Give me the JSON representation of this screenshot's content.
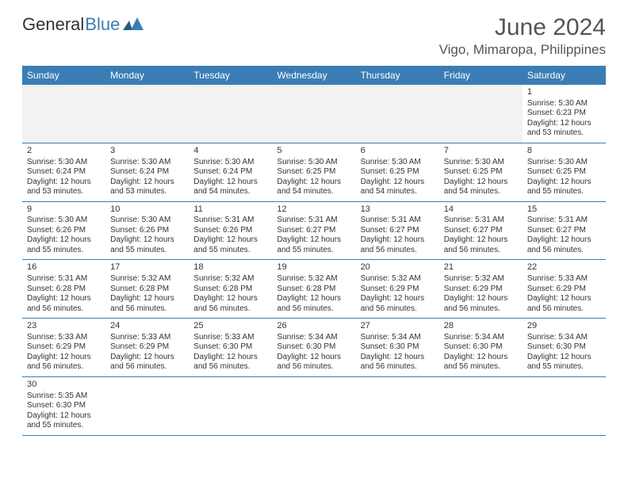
{
  "logo": {
    "text1": "General",
    "text2": "Blue"
  },
  "title": "June 2024",
  "location": "Vigo, Mimaropa, Philippines",
  "colors": {
    "header_bg": "#3a7db5",
    "header_text": "#ffffff",
    "border": "#3a7db5",
    "blank_bg": "#f2f2f2",
    "text": "#333333"
  },
  "dayNames": [
    "Sunday",
    "Monday",
    "Tuesday",
    "Wednesday",
    "Thursday",
    "Friday",
    "Saturday"
  ],
  "weeks": [
    [
      {
        "blank": true
      },
      {
        "blank": true
      },
      {
        "blank": true
      },
      {
        "blank": true
      },
      {
        "blank": true
      },
      {
        "blank": true
      },
      {
        "day": "1",
        "sunrise": "Sunrise: 5:30 AM",
        "sunset": "Sunset: 6:23 PM",
        "daylight": "Daylight: 12 hours and 53 minutes."
      }
    ],
    [
      {
        "day": "2",
        "sunrise": "Sunrise: 5:30 AM",
        "sunset": "Sunset: 6:24 PM",
        "daylight": "Daylight: 12 hours and 53 minutes."
      },
      {
        "day": "3",
        "sunrise": "Sunrise: 5:30 AM",
        "sunset": "Sunset: 6:24 PM",
        "daylight": "Daylight: 12 hours and 53 minutes."
      },
      {
        "day": "4",
        "sunrise": "Sunrise: 5:30 AM",
        "sunset": "Sunset: 6:24 PM",
        "daylight": "Daylight: 12 hours and 54 minutes."
      },
      {
        "day": "5",
        "sunrise": "Sunrise: 5:30 AM",
        "sunset": "Sunset: 6:25 PM",
        "daylight": "Daylight: 12 hours and 54 minutes."
      },
      {
        "day": "6",
        "sunrise": "Sunrise: 5:30 AM",
        "sunset": "Sunset: 6:25 PM",
        "daylight": "Daylight: 12 hours and 54 minutes."
      },
      {
        "day": "7",
        "sunrise": "Sunrise: 5:30 AM",
        "sunset": "Sunset: 6:25 PM",
        "daylight": "Daylight: 12 hours and 54 minutes."
      },
      {
        "day": "8",
        "sunrise": "Sunrise: 5:30 AM",
        "sunset": "Sunset: 6:25 PM",
        "daylight": "Daylight: 12 hours and 55 minutes."
      }
    ],
    [
      {
        "day": "9",
        "sunrise": "Sunrise: 5:30 AM",
        "sunset": "Sunset: 6:26 PM",
        "daylight": "Daylight: 12 hours and 55 minutes."
      },
      {
        "day": "10",
        "sunrise": "Sunrise: 5:30 AM",
        "sunset": "Sunset: 6:26 PM",
        "daylight": "Daylight: 12 hours and 55 minutes."
      },
      {
        "day": "11",
        "sunrise": "Sunrise: 5:31 AM",
        "sunset": "Sunset: 6:26 PM",
        "daylight": "Daylight: 12 hours and 55 minutes."
      },
      {
        "day": "12",
        "sunrise": "Sunrise: 5:31 AM",
        "sunset": "Sunset: 6:27 PM",
        "daylight": "Daylight: 12 hours and 55 minutes."
      },
      {
        "day": "13",
        "sunrise": "Sunrise: 5:31 AM",
        "sunset": "Sunset: 6:27 PM",
        "daylight": "Daylight: 12 hours and 56 minutes."
      },
      {
        "day": "14",
        "sunrise": "Sunrise: 5:31 AM",
        "sunset": "Sunset: 6:27 PM",
        "daylight": "Daylight: 12 hours and 56 minutes."
      },
      {
        "day": "15",
        "sunrise": "Sunrise: 5:31 AM",
        "sunset": "Sunset: 6:27 PM",
        "daylight": "Daylight: 12 hours and 56 minutes."
      }
    ],
    [
      {
        "day": "16",
        "sunrise": "Sunrise: 5:31 AM",
        "sunset": "Sunset: 6:28 PM",
        "daylight": "Daylight: 12 hours and 56 minutes."
      },
      {
        "day": "17",
        "sunrise": "Sunrise: 5:32 AM",
        "sunset": "Sunset: 6:28 PM",
        "daylight": "Daylight: 12 hours and 56 minutes."
      },
      {
        "day": "18",
        "sunrise": "Sunrise: 5:32 AM",
        "sunset": "Sunset: 6:28 PM",
        "daylight": "Daylight: 12 hours and 56 minutes."
      },
      {
        "day": "19",
        "sunrise": "Sunrise: 5:32 AM",
        "sunset": "Sunset: 6:28 PM",
        "daylight": "Daylight: 12 hours and 56 minutes."
      },
      {
        "day": "20",
        "sunrise": "Sunrise: 5:32 AM",
        "sunset": "Sunset: 6:29 PM",
        "daylight": "Daylight: 12 hours and 56 minutes."
      },
      {
        "day": "21",
        "sunrise": "Sunrise: 5:32 AM",
        "sunset": "Sunset: 6:29 PM",
        "daylight": "Daylight: 12 hours and 56 minutes."
      },
      {
        "day": "22",
        "sunrise": "Sunrise: 5:33 AM",
        "sunset": "Sunset: 6:29 PM",
        "daylight": "Daylight: 12 hours and 56 minutes."
      }
    ],
    [
      {
        "day": "23",
        "sunrise": "Sunrise: 5:33 AM",
        "sunset": "Sunset: 6:29 PM",
        "daylight": "Daylight: 12 hours and 56 minutes."
      },
      {
        "day": "24",
        "sunrise": "Sunrise: 5:33 AM",
        "sunset": "Sunset: 6:29 PM",
        "daylight": "Daylight: 12 hours and 56 minutes."
      },
      {
        "day": "25",
        "sunrise": "Sunrise: 5:33 AM",
        "sunset": "Sunset: 6:30 PM",
        "daylight": "Daylight: 12 hours and 56 minutes."
      },
      {
        "day": "26",
        "sunrise": "Sunrise: 5:34 AM",
        "sunset": "Sunset: 6:30 PM",
        "daylight": "Daylight: 12 hours and 56 minutes."
      },
      {
        "day": "27",
        "sunrise": "Sunrise: 5:34 AM",
        "sunset": "Sunset: 6:30 PM",
        "daylight": "Daylight: 12 hours and 56 minutes."
      },
      {
        "day": "28",
        "sunrise": "Sunrise: 5:34 AM",
        "sunset": "Sunset: 6:30 PM",
        "daylight": "Daylight: 12 hours and 56 minutes."
      },
      {
        "day": "29",
        "sunrise": "Sunrise: 5:34 AM",
        "sunset": "Sunset: 6:30 PM",
        "daylight": "Daylight: 12 hours and 55 minutes."
      }
    ],
    [
      {
        "day": "30",
        "sunrise": "Sunrise: 5:35 AM",
        "sunset": "Sunset: 6:30 PM",
        "daylight": "Daylight: 12 hours and 55 minutes."
      },
      {
        "blank": true,
        "white": true
      },
      {
        "blank": true,
        "white": true
      },
      {
        "blank": true,
        "white": true
      },
      {
        "blank": true,
        "white": true
      },
      {
        "blank": true,
        "white": true
      },
      {
        "blank": true,
        "white": true
      }
    ]
  ]
}
